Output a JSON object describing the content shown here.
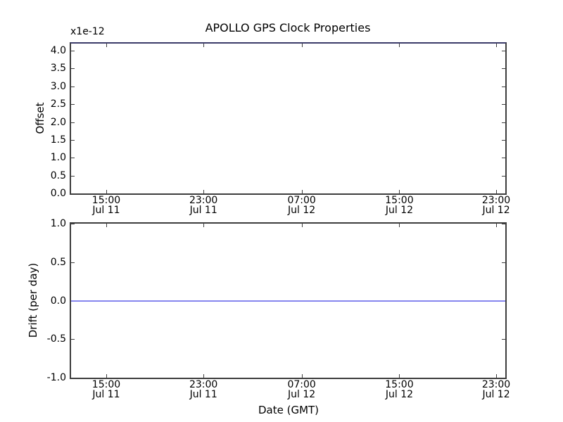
{
  "figure": {
    "title": "APOLLO GPS Clock Properties",
    "offset_multiplier": "x1e-12",
    "xlabel": "Date (GMT)"
  },
  "colors": {
    "line_blue": "#8585ee",
    "spine": "#3d3d3d",
    "top_spine_blend": "#3b3b69",
    "background": "#ffffff",
    "text": "#000000"
  },
  "xticks": [
    {
      "time": "15:00",
      "date": "Jul 11",
      "frac": 0.081
    },
    {
      "time": "23:00",
      "date": "Jul 11",
      "frac": 0.305
    },
    {
      "time": "07:00",
      "date": "Jul 12",
      "frac": 0.531
    },
    {
      "time": "15:00",
      "date": "Jul 12",
      "frac": 0.756
    },
    {
      "time": "23:00",
      "date": "Jul 12",
      "frac": 0.979
    }
  ],
  "plots": {
    "offset": {
      "ylabel": "Offset",
      "ylim": [
        0.0,
        4.2
      ],
      "ytick_labels": [
        "4.0",
        "3.5",
        "3.0",
        "2.5",
        "2.0",
        "1.5",
        "1.0",
        "0.5",
        "0.0"
      ],
      "ytick_values": [
        4.0,
        3.5,
        3.0,
        2.5,
        2.0,
        1.5,
        1.0,
        0.5,
        0.0
      ],
      "line_value": 4.2
    },
    "drift": {
      "ylabel": "Drift (per day)",
      "ylim": [
        -1.0,
        1.0
      ],
      "ytick_labels": [
        "1.0",
        "0.5",
        "0.0",
        "-0.5",
        "-1.0"
      ],
      "ytick_values": [
        1.0,
        0.5,
        0.0,
        -0.5,
        -1.0
      ],
      "line_value": 0.0
    }
  },
  "chart_data": [
    {
      "type": "line",
      "title": "APOLLO GPS Clock Properties",
      "ylabel": "Offset",
      "y_scale_factor": "x1e-12",
      "x": [
        "Jul 11 15:00",
        "Jul 11 23:00",
        "Jul 12 07:00",
        "Jul 12 15:00",
        "Jul 12 23:00"
      ],
      "series": [
        {
          "name": "offset",
          "values": [
            4.2,
            4.2,
            4.2,
            4.2,
            4.2
          ],
          "color": "#8585ee",
          "note": "constant horizontal line coinciding with the top axis spine (~4.2e-12), rendering the spine navy"
        }
      ],
      "ylim": [
        0.0,
        4.2
      ],
      "yticks": [
        0.0,
        0.5,
        1.0,
        1.5,
        2.0,
        2.5,
        3.0,
        3.5,
        4.0
      ],
      "xticklabels": [
        "15:00\nJul 11",
        "23:00\nJul 11",
        "07:00\nJul 12",
        "15:00\nJul 12",
        "23:00\nJul 12"
      ],
      "grid": false,
      "legend": false,
      "tick_direction": "in"
    },
    {
      "type": "line",
      "title": "",
      "ylabel": "Drift (per day)",
      "xlabel": "Date (GMT)",
      "x": [
        "Jul 11 15:00",
        "Jul 11 23:00",
        "Jul 12 07:00",
        "Jul 12 15:00",
        "Jul 12 23:00"
      ],
      "series": [
        {
          "name": "drift",
          "values": [
            0.0,
            0.0,
            0.0,
            0.0,
            0.0
          ],
          "color": "#8585ee",
          "note": "constant horizontal line at 0.0"
        }
      ],
      "ylim": [
        -1.0,
        1.0
      ],
      "yticks": [
        -1.0,
        -0.5,
        0.0,
        0.5,
        1.0
      ],
      "xticklabels": [
        "15:00\nJul 11",
        "23:00\nJul 11",
        "07:00\nJul 12",
        "15:00\nJul 12",
        "23:00\nJul 12"
      ],
      "grid": false,
      "legend": false,
      "tick_direction": "in"
    }
  ]
}
